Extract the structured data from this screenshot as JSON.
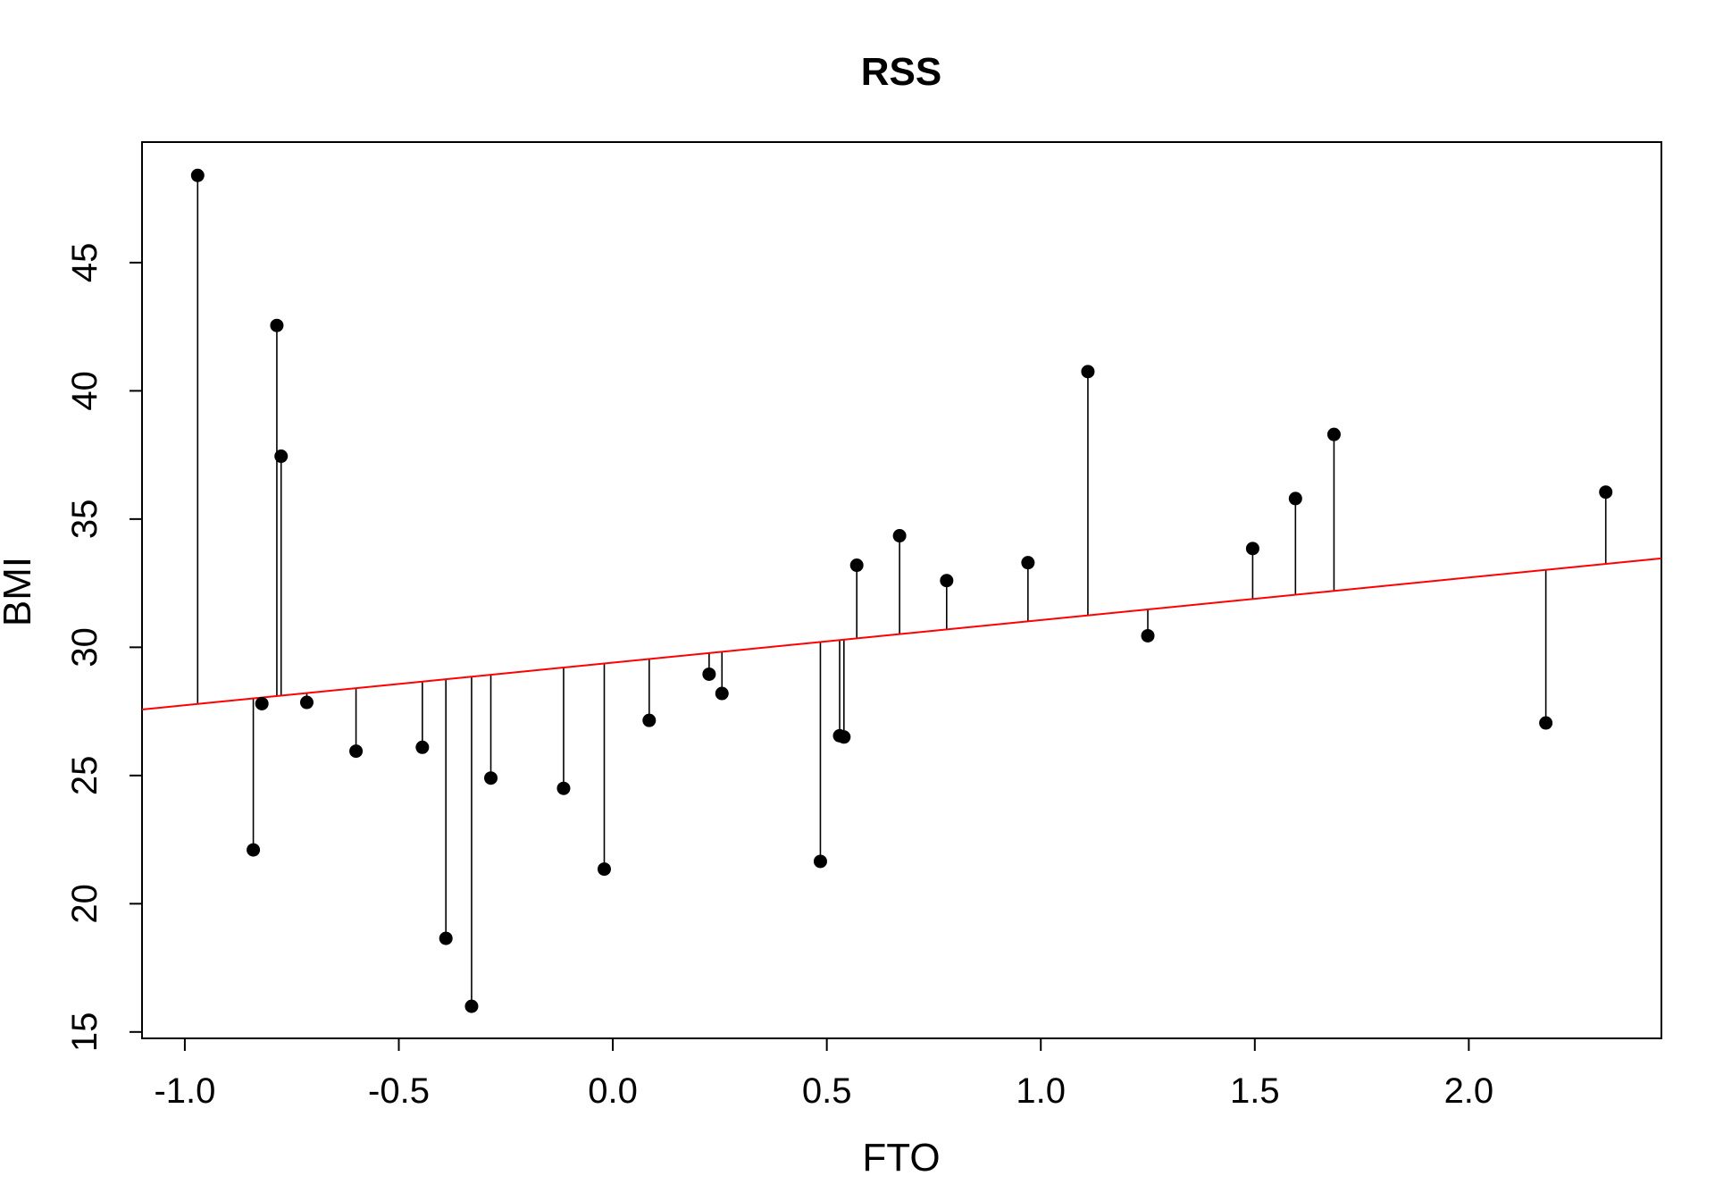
{
  "chart_data": {
    "type": "scatter",
    "title": "RSS",
    "xlabel": "FTO",
    "ylabel": "BMI",
    "xlim": [
      -1.1,
      2.45
    ],
    "ylim": [
      14.75,
      49.7
    ],
    "x_ticks": [
      -1.0,
      -0.5,
      0.0,
      0.5,
      1.0,
      1.5,
      2.0
    ],
    "x_tick_labels": [
      "-1.0",
      "-0.5",
      "0.0",
      "0.5",
      "1.0",
      "1.5",
      "2.0"
    ],
    "y_ticks": [
      15,
      20,
      25,
      30,
      35,
      40,
      45
    ],
    "y_tick_labels": [
      "15",
      "20",
      "25",
      "30",
      "35",
      "40",
      "45"
    ],
    "grid": false,
    "points": [
      {
        "x": -0.97,
        "y": 48.4
      },
      {
        "x": -0.84,
        "y": 22.1
      },
      {
        "x": -0.82,
        "y": 27.8
      },
      {
        "x": -0.785,
        "y": 42.55
      },
      {
        "x": -0.775,
        "y": 37.45
      },
      {
        "x": -0.715,
        "y": 27.85
      },
      {
        "x": -0.6,
        "y": 25.95
      },
      {
        "x": -0.445,
        "y": 26.1
      },
      {
        "x": -0.39,
        "y": 18.65
      },
      {
        "x": -0.33,
        "y": 16.0
      },
      {
        "x": -0.285,
        "y": 24.9
      },
      {
        "x": -0.115,
        "y": 24.5
      },
      {
        "x": -0.02,
        "y": 21.35
      },
      {
        "x": 0.085,
        "y": 27.15
      },
      {
        "x": 0.225,
        "y": 28.95
      },
      {
        "x": 0.255,
        "y": 28.2
      },
      {
        "x": 0.485,
        "y": 21.65
      },
      {
        "x": 0.53,
        "y": 26.55
      },
      {
        "x": 0.54,
        "y": 26.5
      },
      {
        "x": 0.57,
        "y": 33.2
      },
      {
        "x": 0.67,
        "y": 34.35
      },
      {
        "x": 0.78,
        "y": 32.6
      },
      {
        "x": 0.97,
        "y": 33.3
      },
      {
        "x": 1.11,
        "y": 40.75
      },
      {
        "x": 1.25,
        "y": 30.45
      },
      {
        "x": 1.495,
        "y": 33.85
      },
      {
        "x": 1.595,
        "y": 35.8
      },
      {
        "x": 1.685,
        "y": 38.3
      },
      {
        "x": 2.18,
        "y": 27.05
      },
      {
        "x": 2.32,
        "y": 36.05
      }
    ],
    "fit_line": {
      "type": "linear",
      "intercept": 29.4,
      "slope": 1.66,
      "color": "#ff0000"
    },
    "residuals": true,
    "point_color": "#000000"
  }
}
